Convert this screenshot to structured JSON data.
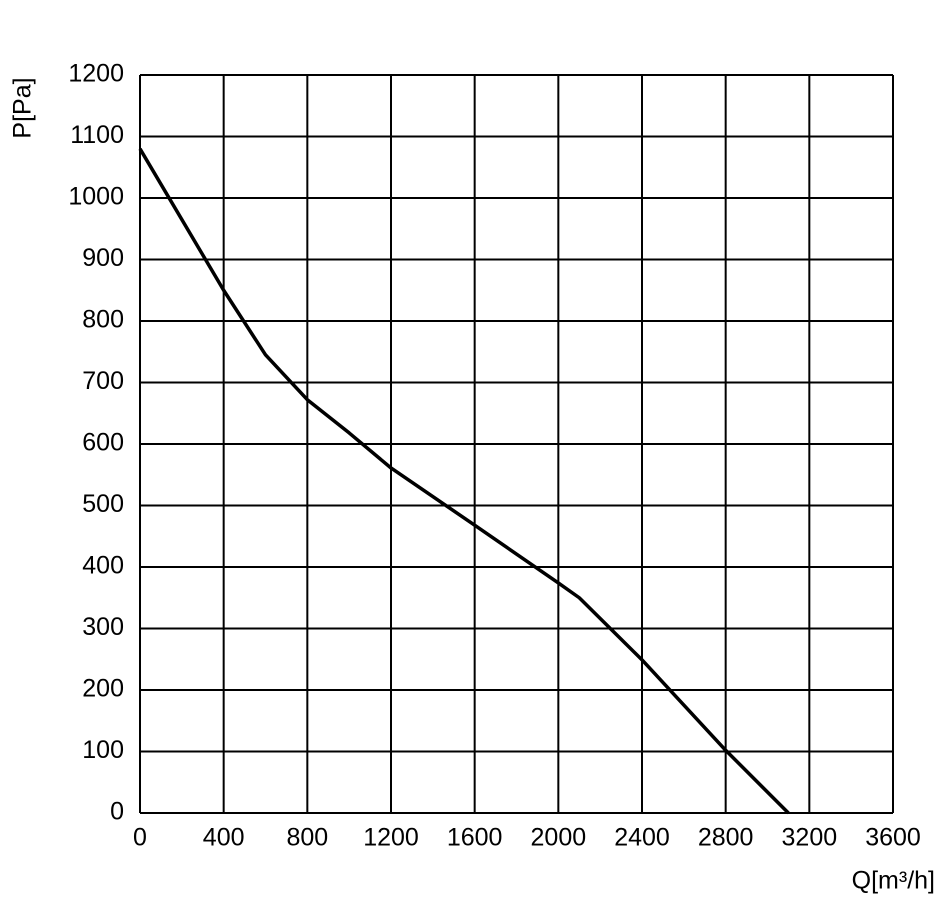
{
  "chart_data": {
    "type": "line",
    "x_label": "Q[m³/h]",
    "y_label": "P[Pa]",
    "x": [
      0,
      400,
      600,
      800,
      1000,
      1200,
      1600,
      2000,
      2100,
      2400,
      2800,
      3100
    ],
    "series": [
      {
        "color": "#000000",
        "values": [
          1080,
          850,
          745,
          672,
          618,
          561,
          468,
          374,
          350,
          249,
          102,
          0
        ]
      }
    ],
    "xlim": [
      0,
      3600
    ],
    "xticks": [
      0,
      400,
      800,
      1200,
      1600,
      2000,
      2400,
      2800,
      3200,
      3600
    ],
    "ylim": [
      0,
      1200
    ],
    "yticks": [
      0,
      100,
      200,
      300,
      400,
      500,
      600,
      700,
      800,
      900,
      1000,
      1100,
      1200
    ],
    "grid": true
  }
}
